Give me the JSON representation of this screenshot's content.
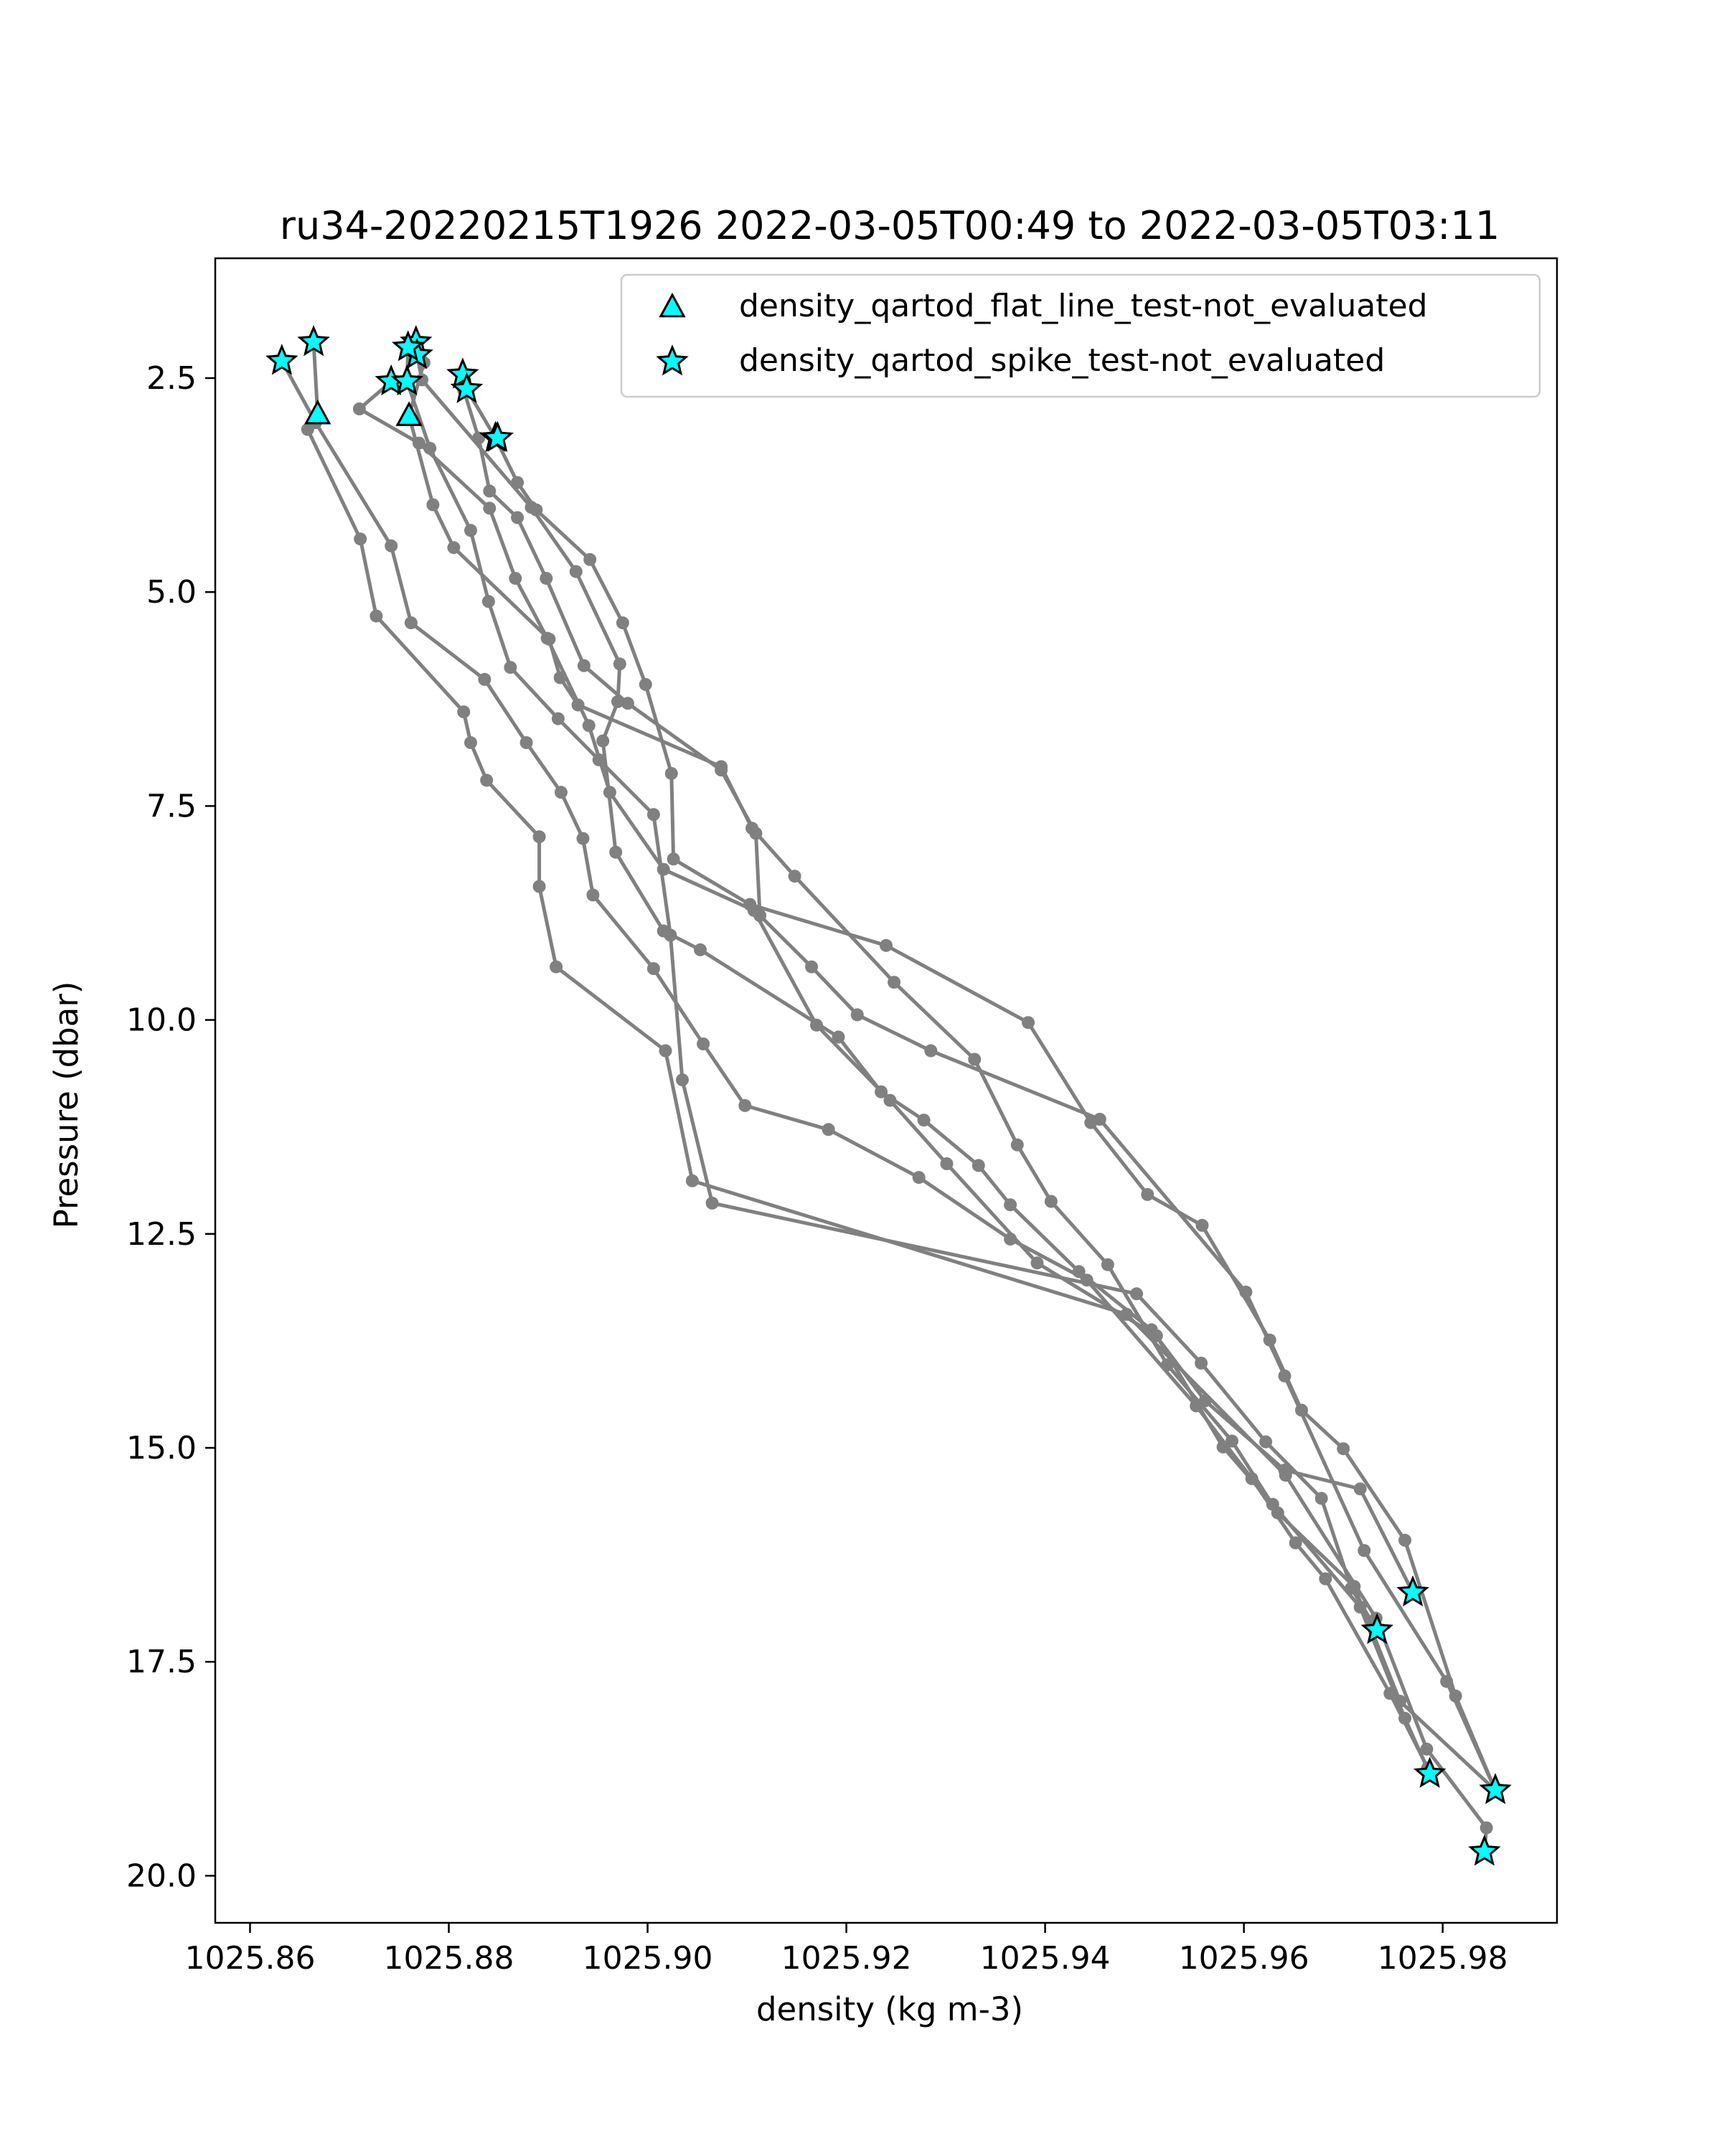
{
  "chart_data": {
    "type": "line",
    "title": "ru34-20220215T1926 2022-03-05T00:49 to 2022-03-05T03:11",
    "xlabel": "density (kg m-3)",
    "ylabel": "Pressure (dbar)",
    "xlim": [
      1025.8565,
      1025.9915
    ],
    "ylim": [
      20.55,
      1.1
    ],
    "y_inverted": true,
    "grid": false,
    "x_ticks": [
      "1025.86",
      "1025.88",
      "1025.90",
      "1025.92",
      "1025.94",
      "1025.96",
      "1025.98"
    ],
    "y_ticks": [
      "2.5",
      "5.0",
      "7.5",
      "10.0",
      "12.5",
      "15.0",
      "17.5",
      "20.0"
    ],
    "line_color": "#808080",
    "marker_fill": "#00FFFF",
    "marker_edge": "#000000",
    "series": [
      {
        "points": [
          [
            1025.8664,
            2.08
          ],
          [
            1025.8668,
            2.92
          ],
          [
            1025.8658,
            3.1
          ],
          [
            1025.8711,
            4.38
          ],
          [
            1025.8727,
            5.28
          ],
          [
            1025.8815,
            6.4
          ],
          [
            1025.8822,
            6.76
          ],
          [
            1025.8838,
            7.2
          ],
          [
            1025.8891,
            7.86
          ],
          [
            1025.8891,
            8.44
          ],
          [
            1025.8908,
            9.38
          ],
          [
            1025.9018,
            10.36
          ],
          [
            1025.9045,
            11.88
          ],
          [
            1025.9482,
            13.44
          ],
          [
            1025.9642,
            15.32
          ],
          [
            1025.9733,
            16.99
          ],
          [
            1025.9784,
            18.52
          ],
          [
            1025.9844,
            19.44
          ],
          [
            1025.9842,
            19.72
          ]
        ]
      },
      {
        "points": [
          [
            1025.8632,
            2.3
          ],
          [
            1025.8666,
            3.02
          ],
          [
            1025.8742,
            4.46
          ],
          [
            1025.8762,
            5.36
          ],
          [
            1025.8836,
            6.02
          ],
          [
            1025.8878,
            6.76
          ],
          [
            1025.8913,
            7.34
          ],
          [
            1025.8935,
            7.88
          ],
          [
            1025.8945,
            8.54
          ],
          [
            1025.9006,
            9.4
          ],
          [
            1025.9056,
            10.28
          ],
          [
            1025.9098,
            11.0
          ],
          [
            1025.9182,
            11.28
          ],
          [
            1025.9273,
            11.84
          ],
          [
            1025.9365,
            12.56
          ],
          [
            1025.9442,
            13.04
          ],
          [
            1025.9552,
            14.51
          ],
          [
            1025.9608,
            15.36
          ],
          [
            1025.9652,
            16.11
          ],
          [
            1025.9682,
            16.53
          ],
          [
            1025.9747,
            17.87
          ],
          [
            1025.9785,
            18.74
          ]
        ]
      },
      {
        "points": [
          [
            1025.8742,
            2.54
          ],
          [
            1025.871,
            2.86
          ],
          [
            1025.877,
            3.26
          ],
          [
            1025.8841,
            4.02
          ],
          [
            1025.8867,
            4.84
          ],
          [
            1025.8899,
            5.54
          ],
          [
            1025.8941,
            6.56
          ],
          [
            1025.8962,
            7.34
          ],
          [
            1025.9016,
            8.24
          ],
          [
            1025.9107,
            8.72
          ],
          [
            1025.917,
            10.06
          ],
          [
            1025.9244,
            10.94
          ],
          [
            1025.9301,
            11.68
          ],
          [
            1025.9392,
            12.84
          ],
          [
            1025.9512,
            13.69
          ],
          [
            1025.9579,
            14.99
          ],
          [
            1025.9629,
            15.66
          ],
          [
            1025.9717,
            16.86
          ],
          [
            1025.9762,
            18.16
          ],
          [
            1025.9787,
            18.81
          ]
        ]
      },
      {
        "points": [
          [
            1025.8759,
            2.14
          ],
          [
            1025.8758,
            2.54
          ],
          [
            1025.8781,
            3.32
          ],
          [
            1025.8822,
            4.28
          ],
          [
            1025.884,
            5.11
          ],
          [
            1025.8862,
            5.88
          ],
          [
            1025.891,
            6.48
          ],
          [
            1025.8951,
            6.96
          ],
          [
            1025.9006,
            7.6
          ],
          [
            1025.9023,
            9.01
          ],
          [
            1025.9035,
            10.7
          ],
          [
            1025.9065,
            12.14
          ],
          [
            1025.9492,
            13.2
          ],
          [
            1025.9557,
            14.01
          ],
          [
            1025.9622,
            14.93
          ],
          [
            1025.9678,
            15.59
          ],
          [
            1025.9708,
            16.64
          ],
          [
            1025.9734,
            17.13
          ]
        ]
      },
      {
        "points": [
          [
            1025.8767,
            2.08
          ],
          [
            1025.8775,
            2.32
          ],
          [
            1025.876,
            2.94
          ],
          [
            1025.8784,
            3.98
          ],
          [
            1025.8805,
            4.48
          ],
          [
            1025.8901,
            5.55
          ],
          [
            1025.8912,
            6.0
          ],
          [
            1025.893,
            6.32
          ],
          [
            1025.9074,
            7.04
          ],
          [
            1025.9105,
            7.76
          ],
          [
            1025.9148,
            8.32
          ],
          [
            1025.9248,
            9.56
          ],
          [
            1025.9329,
            10.46
          ],
          [
            1025.9372,
            11.46
          ],
          [
            1025.9406,
            12.12
          ],
          [
            1025.9463,
            12.86
          ],
          [
            1025.9523,
            14.03
          ],
          [
            1025.9588,
            14.92
          ],
          [
            1025.9634,
            15.76
          ],
          [
            1025.9711,
            16.62
          ],
          [
            1025.9757,
            17.96
          ],
          [
            1025.9853,
            19.0
          ]
        ]
      },
      {
        "points": [
          [
            1025.8768,
            2.23
          ],
          [
            1025.8773,
            2.52
          ],
          [
            1025.8883,
            4.01
          ],
          [
            1025.8928,
            4.76
          ],
          [
            1025.8972,
            5.84
          ],
          [
            1025.897,
            6.28
          ],
          [
            1025.8955,
            6.74
          ],
          [
            1025.8968,
            8.04
          ],
          [
            1025.9016,
            8.96
          ],
          [
            1025.9053,
            9.18
          ],
          [
            1025.9192,
            10.2
          ],
          [
            1025.9235,
            10.84
          ],
          [
            1025.9278,
            11.17
          ],
          [
            1025.9333,
            11.7
          ],
          [
            1025.9365,
            12.16
          ],
          [
            1025.9434,
            12.94
          ],
          [
            1025.9507,
            13.62
          ],
          [
            1025.9561,
            14.45
          ],
          [
            1025.9641,
            15.26
          ],
          [
            1025.9717,
            15.48
          ],
          [
            1025.977,
            16.69
          ]
        ]
      },
      {
        "points": [
          [
            1025.8814,
            2.46
          ],
          [
            1025.8815,
            2.64
          ],
          [
            1025.883,
            3.2
          ],
          [
            1025.8841,
            3.82
          ],
          [
            1025.8869,
            4.13
          ],
          [
            1025.8898,
            4.84
          ],
          [
            1025.8936,
            5.86
          ],
          [
            1025.898,
            6.3
          ],
          [
            1025.9074,
            7.08
          ],
          [
            1025.9109,
            7.82
          ],
          [
            1025.9113,
            8.78
          ],
          [
            1025.9165,
            9.38
          ],
          [
            1025.9211,
            9.94
          ],
          [
            1025.9285,
            10.36
          ],
          [
            1025.9455,
            11.16
          ],
          [
            1025.9602,
            13.18
          ],
          [
            1025.9641,
            14.16
          ],
          [
            1025.9721,
            16.2
          ],
          [
            1025.9804,
            17.73
          ],
          [
            1025.9853,
            19.0
          ]
        ]
      },
      {
        "points": [
          [
            1025.8818,
            2.63
          ],
          [
            1025.8847,
            3.2
          ],
          [
            1025.8869,
            3.72
          ],
          [
            1025.8888,
            4.04
          ],
          [
            1025.8942,
            4.62
          ],
          [
            1025.8975,
            5.36
          ],
          [
            1025.8998,
            6.08
          ],
          [
            1025.9024,
            7.12
          ],
          [
            1025.9026,
            8.12
          ],
          [
            1025.9103,
            8.65
          ],
          [
            1025.924,
            9.13
          ],
          [
            1025.9383,
            10.03
          ],
          [
            1025.9446,
            11.2
          ],
          [
            1025.9503,
            12.04
          ],
          [
            1025.9558,
            12.4
          ],
          [
            1025.9626,
            13.74
          ],
          [
            1025.9658,
            14.56
          ],
          [
            1025.97,
            15.01
          ],
          [
            1025.9762,
            16.08
          ],
          [
            1025.9813,
            17.9
          ],
          [
            1025.9853,
            19.0
          ]
        ]
      }
    ],
    "legend": {
      "placement": "upper right",
      "entries": [
        {
          "label": "density_qartod_flat_line_test-not_evaluated",
          "marker": "triangle"
        },
        {
          "label": "density_qartod_spike_test-not_evaluated",
          "marker": "star"
        }
      ]
    },
    "flat_line_markers": [
      [
        1025.8668,
        2.92
      ],
      [
        1025.876,
        2.94
      ]
    ],
    "spike_markers": [
      [
        1025.8632,
        2.3
      ],
      [
        1025.8664,
        2.08
      ],
      [
        1025.8767,
        2.08
      ],
      [
        1025.8768,
        2.23
      ],
      [
        1025.8759,
        2.14
      ],
      [
        1025.8742,
        2.54
      ],
      [
        1025.8758,
        2.54
      ],
      [
        1025.8814,
        2.46
      ],
      [
        1025.8818,
        2.63
      ],
      [
        1025.8847,
        3.2
      ],
      [
        1025.8849,
        3.2
      ],
      [
        1025.977,
        16.69
      ],
      [
        1025.9734,
        17.13
      ],
      [
        1025.9787,
        18.81
      ],
      [
        1025.9853,
        19.0
      ],
      [
        1025.9842,
        19.72
      ]
    ]
  }
}
